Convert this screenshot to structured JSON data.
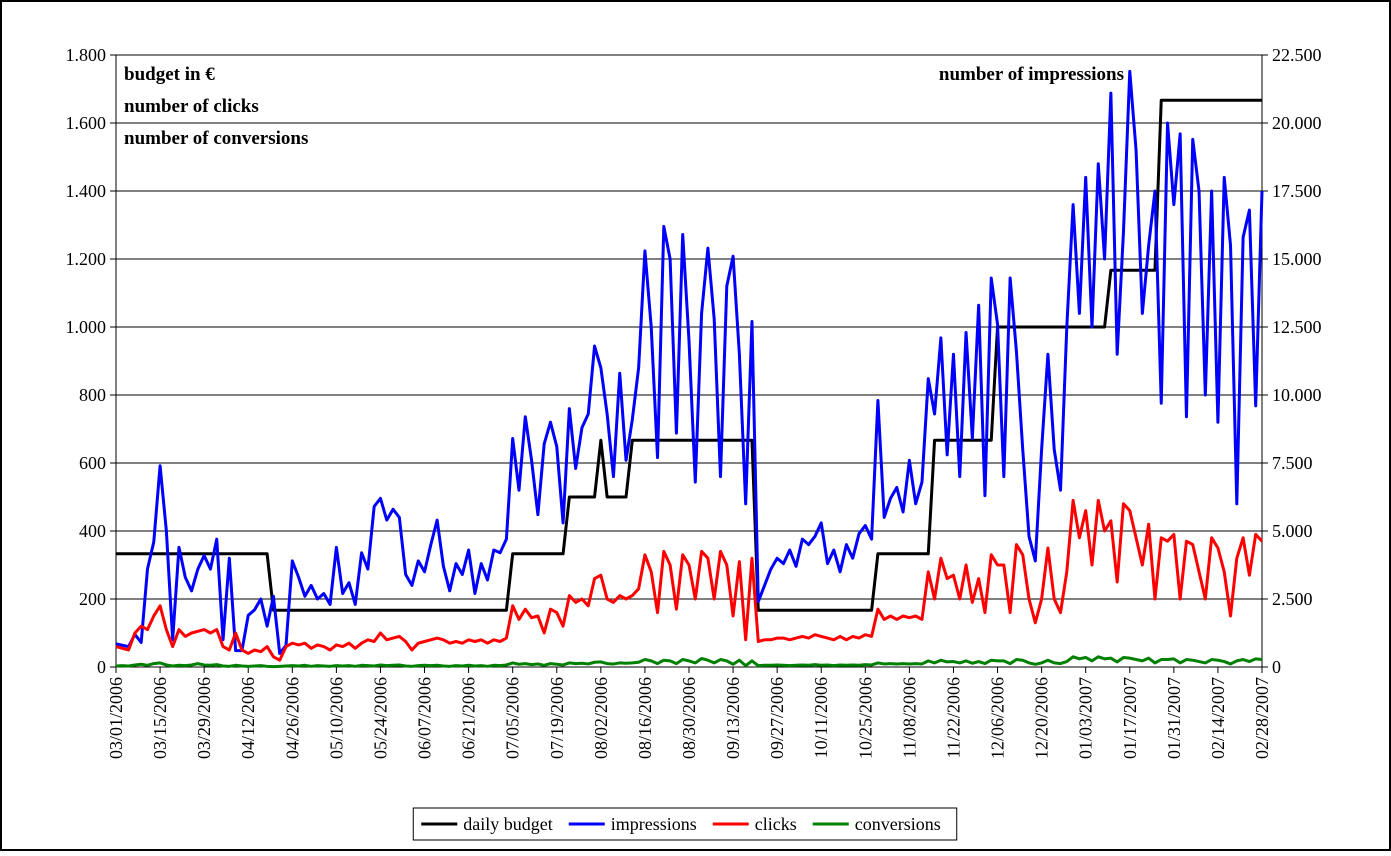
{
  "chart_data": {
    "type": "line",
    "annotations": [
      "budget in €",
      "number of clicks",
      "number of conversions",
      "number of impressions"
    ],
    "categories": [
      "03/01/2006",
      null,
      null,
      null,
      null,
      null,
      null,
      "03/15/2006",
      null,
      null,
      null,
      null,
      null,
      null,
      "03/29/2006",
      null,
      null,
      null,
      null,
      null,
      null,
      "04/12/2006",
      null,
      null,
      null,
      null,
      null,
      null,
      "04/26/2006",
      null,
      null,
      null,
      null,
      null,
      null,
      "05/10/2006",
      null,
      null,
      null,
      null,
      null,
      null,
      "05/24/2006",
      null,
      null,
      null,
      null,
      null,
      null,
      "06/07/2006",
      null,
      null,
      null,
      null,
      null,
      null,
      "06/21/2006",
      null,
      null,
      null,
      null,
      null,
      null,
      "07/05/2006",
      null,
      null,
      null,
      null,
      null,
      null,
      "07/19/2006",
      null,
      null,
      null,
      null,
      null,
      null,
      "08/02/2006",
      null,
      null,
      null,
      null,
      null,
      null,
      "08/16/2006",
      null,
      null,
      null,
      null,
      null,
      null,
      "08/30/2006",
      null,
      null,
      null,
      null,
      null,
      null,
      "09/13/2006",
      null,
      null,
      null,
      null,
      null,
      null,
      "09/27/2006",
      null,
      null,
      null,
      null,
      null,
      null,
      "10/11/2006",
      null,
      null,
      null,
      null,
      null,
      null,
      "10/25/2006",
      null,
      null,
      null,
      null,
      null,
      null,
      "11/08/2006",
      null,
      null,
      null,
      null,
      null,
      null,
      "11/22/2006",
      null,
      null,
      null,
      null,
      null,
      null,
      "12/06/2006",
      null,
      null,
      null,
      null,
      null,
      null,
      "12/20/2006",
      null,
      null,
      null,
      null,
      null,
      null,
      "01/03/2007",
      null,
      null,
      null,
      null,
      null,
      null,
      "01/17/2007",
      null,
      null,
      null,
      null,
      null,
      null,
      "01/31/2007",
      null,
      null,
      null,
      null,
      null,
      null,
      "02/14/2007",
      null,
      null,
      null,
      null,
      null,
      null,
      "02/28/2007"
    ],
    "series": [
      {
        "name": "daily budget",
        "color": "#000000",
        "axis": "y",
        "values": [
          333,
          333,
          333,
          333,
          333,
          333,
          333,
          333,
          333,
          333,
          333,
          333,
          333,
          333,
          333,
          333,
          333,
          333,
          333,
          333,
          333,
          333,
          333,
          333,
          333,
          167,
          167,
          167,
          167,
          167,
          167,
          167,
          167,
          167,
          167,
          167,
          167,
          167,
          167,
          167,
          167,
          167,
          167,
          167,
          167,
          167,
          167,
          167,
          167,
          167,
          167,
          167,
          167,
          167,
          167,
          167,
          167,
          167,
          167,
          167,
          167,
          167,
          167,
          333,
          333,
          333,
          333,
          333,
          333,
          333,
          333,
          333,
          500,
          500,
          500,
          500,
          500,
          667,
          500,
          500,
          500,
          500,
          667,
          667,
          667,
          667,
          667,
          667,
          667,
          667,
          667,
          667,
          667,
          667,
          667,
          667,
          667,
          667,
          667,
          667,
          667,
          667,
          167,
          167,
          167,
          167,
          167,
          167,
          167,
          167,
          167,
          167,
          167,
          167,
          167,
          167,
          167,
          167,
          167,
          167,
          167,
          333,
          333,
          333,
          333,
          333,
          333,
          333,
          333,
          333,
          667,
          667,
          667,
          667,
          667,
          667,
          667,
          667,
          667,
          667,
          1000,
          1000,
          1000,
          1000,
          1000,
          1000,
          1000,
          1000,
          1000,
          1000,
          1000,
          1000,
          1000,
          1000,
          1000,
          1000,
          1000,
          1000,
          1167,
          1167,
          1167,
          1167,
          1167,
          1167,
          1167,
          1167,
          1667,
          1667,
          1667,
          1667,
          1667,
          1667,
          1667,
          1667,
          1667,
          1667,
          1667,
          1667,
          1667,
          1667,
          1667,
          1667,
          1667
        ]
      },
      {
        "name": "impressions",
        "color": "#0000ff",
        "axis": "y2",
        "values": [
          850,
          800,
          750,
          1200,
          900,
          3600,
          4600,
          7400,
          5000,
          1000,
          4400,
          3300,
          2800,
          3600,
          4100,
          3600,
          4700,
          1000,
          4000,
          600,
          600,
          1900,
          2100,
          2500,
          1500,
          2600,
          500,
          800,
          3900,
          3300,
          2600,
          3000,
          2500,
          2700,
          2300,
          4400,
          2700,
          3100,
          2300,
          4200,
          3600,
          5900,
          6200,
          5400,
          5800,
          5500,
          3400,
          3000,
          3900,
          3500,
          4500,
          5400,
          3700,
          2800,
          3800,
          3400,
          4300,
          2700,
          3800,
          3200,
          4300,
          4200,
          4700,
          8400,
          6500,
          9200,
          7600,
          5600,
          8200,
          9000,
          8100,
          5300,
          9500,
          7300,
          8800,
          9300,
          11800,
          11000,
          9300,
          7000,
          10800,
          7600,
          9100,
          11000,
          15300,
          12500,
          7700,
          16200,
          15000,
          8600,
          15900,
          12000,
          6800,
          13000,
          15400,
          12800,
          7000,
          14000,
          15100,
          11500,
          6000,
          12700,
          2400,
          3000,
          3600,
          4000,
          3800,
          4300,
          3700,
          4700,
          4500,
          4800,
          5300,
          3800,
          4300,
          3500,
          4500,
          4000,
          4900,
          5200,
          4700,
          9800,
          5500,
          6200,
          6600,
          5700,
          7600,
          6000,
          6800,
          10600,
          9300,
          12100,
          7800,
          11500,
          7000,
          12300,
          8400,
          13300,
          6300,
          14300,
          12600,
          7000,
          14300,
          11600,
          8000,
          4800,
          3900,
          8000,
          11500,
          8000,
          6500,
          12500,
          17000,
          13000,
          18000,
          12500,
          18500,
          15000,
          21100,
          11500,
          16000,
          21900,
          19000,
          13000,
          15500,
          17500,
          9700,
          20000,
          17000,
          19600,
          9200,
          19400,
          17500,
          10000,
          17500,
          9000,
          18000,
          15500,
          6000,
          15800,
          16800,
          9600,
          17500
        ]
      },
      {
        "name": "clicks",
        "color": "#ff0000",
        "axis": "y",
        "values": [
          60,
          55,
          50,
          100,
          120,
          110,
          150,
          180,
          110,
          60,
          110,
          90,
          100,
          105,
          110,
          100,
          110,
          60,
          50,
          100,
          50,
          40,
          50,
          45,
          60,
          30,
          20,
          60,
          70,
          65,
          70,
          55,
          65,
          60,
          50,
          65,
          60,
          70,
          55,
          70,
          80,
          75,
          100,
          80,
          85,
          90,
          75,
          50,
          70,
          75,
          80,
          85,
          80,
          70,
          75,
          70,
          80,
          75,
          80,
          70,
          80,
          75,
          85,
          180,
          140,
          170,
          145,
          150,
          100,
          170,
          160,
          120,
          210,
          190,
          200,
          180,
          260,
          270,
          200,
          190,
          210,
          200,
          210,
          230,
          330,
          280,
          160,
          340,
          300,
          170,
          330,
          300,
          200,
          340,
          320,
          200,
          340,
          300,
          150,
          310,
          80,
          320,
          75,
          80,
          80,
          85,
          85,
          80,
          85,
          90,
          85,
          95,
          90,
          85,
          80,
          90,
          80,
          90,
          85,
          95,
          90,
          170,
          140,
          150,
          140,
          150,
          145,
          150,
          140,
          280,
          200,
          320,
          260,
          270,
          200,
          300,
          190,
          260,
          160,
          330,
          300,
          300,
          160,
          360,
          330,
          200,
          130,
          200,
          350,
          200,
          160,
          280,
          490,
          380,
          460,
          300,
          490,
          400,
          430,
          250,
          480,
          460,
          380,
          300,
          420,
          200,
          380,
          370,
          390,
          200,
          370,
          360,
          280,
          200,
          380,
          350,
          280,
          150,
          320,
          380,
          270,
          390,
          370
        ]
      },
      {
        "name": "conversions",
        "color": "#008000",
        "axis": "y",
        "values": [
          3,
          4,
          3,
          6,
          8,
          5,
          10,
          12,
          6,
          3,
          5,
          4,
          6,
          10,
          6,
          5,
          7,
          3,
          2,
          5,
          3,
          2,
          3,
          4,
          2,
          1,
          2,
          3,
          4,
          3,
          5,
          2,
          4,
          3,
          2,
          4,
          3,
          4,
          2,
          5,
          4,
          3,
          6,
          4,
          5,
          6,
          3,
          2,
          4,
          5,
          4,
          5,
          3,
          2,
          4,
          3,
          5,
          3,
          4,
          2,
          5,
          4,
          6,
          12,
          8,
          10,
          7,
          9,
          5,
          10,
          8,
          6,
          12,
          10,
          11,
          9,
          14,
          15,
          10,
          9,
          12,
          11,
          12,
          14,
          22,
          18,
          10,
          20,
          18,
          10,
          22,
          18,
          12,
          25,
          20,
          12,
          22,
          18,
          8,
          20,
          4,
          18,
          4,
          5,
          5,
          6,
          5,
          4,
          5,
          6,
          5,
          7,
          5,
          6,
          4,
          6,
          5,
          6,
          5,
          7,
          6,
          12,
          9,
          10,
          9,
          10,
          9,
          10,
          9,
          18,
          12,
          20,
          15,
          16,
          12,
          18,
          11,
          16,
          10,
          20,
          18,
          18,
          10,
          22,
          20,
          12,
          8,
          12,
          20,
          12,
          10,
          16,
          30,
          24,
          28,
          18,
          30,
          24,
          26,
          15,
          28,
          26,
          22,
          18,
          26,
          12,
          22,
          22,
          24,
          12,
          22,
          20,
          16,
          12,
          22,
          20,
          16,
          9,
          18,
          22,
          16,
          24,
          22
        ]
      }
    ],
    "ylim": [
      0,
      1800
    ],
    "yticks": [
      0,
      200,
      400,
      600,
      800,
      {
        "value": 1000,
        "label": "1.000"
      },
      {
        "value": 1200,
        "label": "1.200"
      },
      {
        "value": 1400,
        "label": "1.400"
      },
      {
        "value": 1600,
        "label": "1.600"
      },
      {
        "value": 1800,
        "label": "1.800"
      }
    ],
    "y2lim": [
      0,
      22500
    ],
    "y2ticks": [
      0,
      {
        "value": 2500,
        "label": "2.500"
      },
      {
        "value": 5000,
        "label": "5.000"
      },
      {
        "value": 7500,
        "label": "7.500"
      },
      {
        "value": 10000,
        "label": "10.000"
      },
      {
        "value": 12500,
        "label": "12.500"
      },
      {
        "value": 15000,
        "label": "15.000"
      },
      {
        "value": 17500,
        "label": "17.500"
      },
      {
        "value": 20000,
        "label": "20.000"
      },
      {
        "value": 22500,
        "label": "22.500"
      }
    ],
    "grid": true,
    "legend": "bottom"
  }
}
